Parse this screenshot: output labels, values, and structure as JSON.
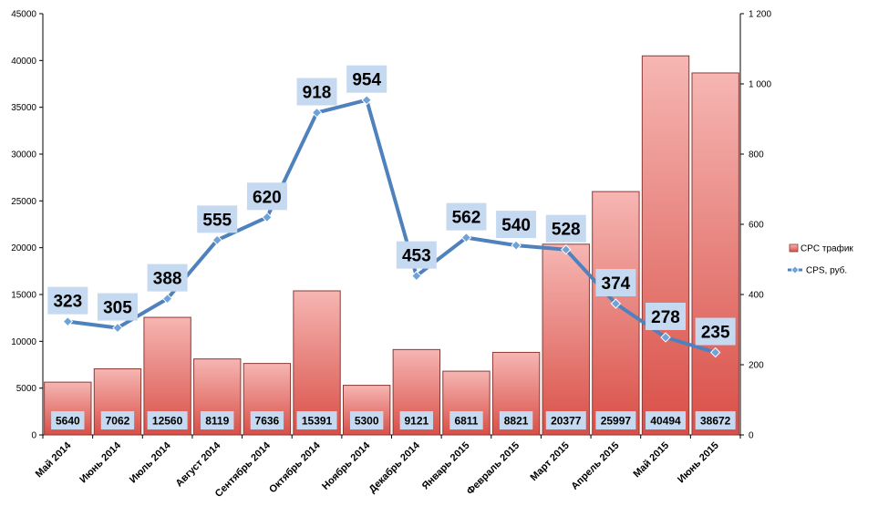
{
  "chart_data": {
    "type": "bar",
    "categories": [
      "Май 2014",
      "Июнь 2014",
      "Июль 2014",
      "Август 2014",
      "Сентябрь 2014",
      "Октябрь 2014",
      "Ноябрь 2014",
      "Декабрь 2014",
      "Январь 2015",
      "Февраль 2015",
      "Март 2015",
      "Апрель 2015",
      "Май 2015",
      "Июнь 2015"
    ],
    "series": [
      {
        "name": "CPC трафик",
        "type": "bar",
        "axis": "left",
        "values": [
          5640,
          7062,
          12560,
          8119,
          7636,
          15391,
          5300,
          9121,
          6811,
          8821,
          20377,
          25997,
          40494,
          38672
        ]
      },
      {
        "name": "CPS, руб.",
        "type": "line",
        "axis": "right",
        "values": [
          323,
          305,
          388,
          555,
          620,
          918,
          954,
          453,
          562,
          540,
          528,
          374,
          278,
          235
        ]
      }
    ],
    "y_left": {
      "range": [
        0,
        45000
      ],
      "ticks": [
        0,
        5000,
        10000,
        15000,
        20000,
        25000,
        30000,
        35000,
        40000,
        45000
      ],
      "tick_labels": [
        "0",
        "5000",
        "10000",
        "15000",
        "20000",
        "25000",
        "30000",
        "35000",
        "40000",
        "45000"
      ]
    },
    "y_right": {
      "range": [
        0,
        1200
      ],
      "ticks": [
        0,
        200,
        400,
        600,
        800,
        1000,
        1200
      ],
      "tick_labels": [
        "0",
        "200",
        "400",
        "600",
        "800",
        "1 000",
        "1 200"
      ]
    },
    "grid": false,
    "legend": {
      "position": "right"
    },
    "colors": {
      "bar_top": "#f6b6b3",
      "bar_bottom": "#d94f47",
      "bar_border": "#8c3a36",
      "line": "#4f81bd",
      "marker": "#6fa2d8",
      "label_box": "#c5d9f1"
    }
  }
}
